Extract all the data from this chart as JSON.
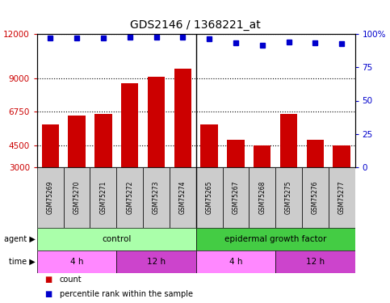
{
  "title": "GDS2146 / 1368221_at",
  "samples": [
    "GSM75269",
    "GSM75270",
    "GSM75271",
    "GSM75272",
    "GSM75273",
    "GSM75274",
    "GSM75265",
    "GSM75267",
    "GSM75268",
    "GSM75275",
    "GSM75276",
    "GSM75277"
  ],
  "counts": [
    5900,
    6500,
    6600,
    8700,
    9100,
    9650,
    5900,
    4850,
    4450,
    6600,
    4850,
    4450
  ],
  "percentiles": [
    97,
    97.2,
    97.1,
    97.5,
    97.5,
    97.6,
    96.2,
    93.5,
    91.5,
    94.0,
    93.5,
    93.0
  ],
  "ylim_left": [
    3000,
    12000
  ],
  "ylim_right": [
    0,
    100
  ],
  "yticks_left": [
    3000,
    4500,
    6750,
    9000,
    12000
  ],
  "yticks_right": [
    0,
    25,
    50,
    75,
    100
  ],
  "bar_color": "#cc0000",
  "dot_color": "#0000cc",
  "agent_labels": [
    {
      "text": "control",
      "start": 0,
      "end": 5,
      "color": "#aaffaa"
    },
    {
      "text": "epidermal growth factor",
      "start": 6,
      "end": 11,
      "color": "#44cc44"
    }
  ],
  "time_labels": [
    {
      "text": "4 h",
      "start": 0,
      "end": 2,
      "color": "#ff88ff"
    },
    {
      "text": "12 h",
      "start": 3,
      "end": 5,
      "color": "#cc44cc"
    },
    {
      "text": "4 h",
      "start": 6,
      "end": 8,
      "color": "#ff88ff"
    },
    {
      "text": "12 h",
      "start": 9,
      "end": 11,
      "color": "#cc44cc"
    }
  ],
  "bar_color_hex": "#cc0000",
  "dot_color_hex": "#0000cc",
  "grid_color": "#000000",
  "bg_color": "#ffffff"
}
